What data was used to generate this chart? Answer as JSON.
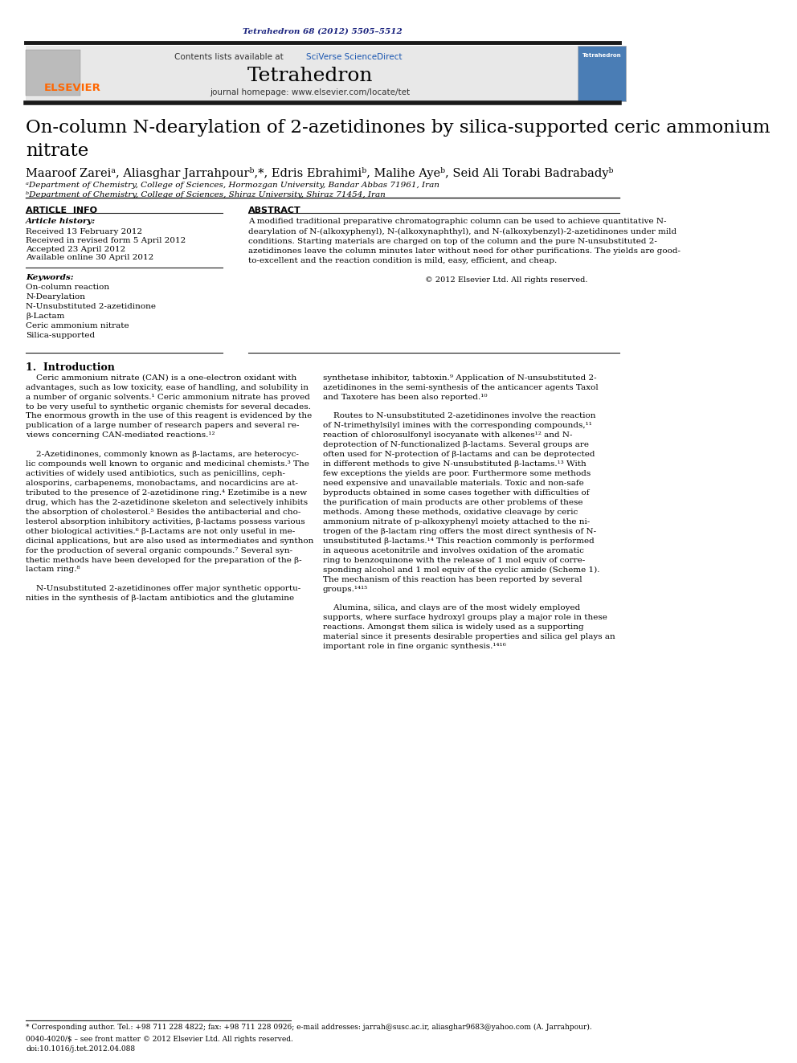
{
  "page_width": 9.92,
  "page_height": 13.23,
  "bg_color": "#ffffff",
  "journal_ref": "Tetrahedron 68 (2012) 5505–5512",
  "journal_ref_color": "#1a237e",
  "header_bg": "#e8e8e8",
  "header_title": "Tetrahedron",
  "header_contents": "Contents lists available at ",
  "header_sciverse": "SciVerse ScienceDirect",
  "header_homepage": "journal homepage: www.elsevier.com/locate/tet",
  "elsevier_color": "#ff6600",
  "sciverse_color": "#1a56b0",
  "article_title": "On-column N-dearylation of 2-azetidinones by silica-supported ceric ammonium\nnitrate",
  "affil_a": "ᵃDepartment of Chemistry, College of Sciences, Hormozgan University, Bandar Abbas 71961, Iran",
  "affil_b": "ᵇDepartment of Chemistry, College of Sciences, Shiraz University, Shiraz 71454, Iran",
  "article_info_title": "ARTICLE  INFO",
  "abstract_title": "ABSTRACT",
  "article_history_label": "Article history:",
  "received": "Received 13 February 2012",
  "revised": "Received in revised form 5 April 2012",
  "accepted": "Accepted 23 April 2012",
  "available": "Available online 30 April 2012",
  "keywords_label": "Keywords:",
  "keywords": [
    "On-column reaction",
    "N-Dearylation",
    "N-Unsubstituted 2-azetidinone",
    "β-Lactam",
    "Ceric ammonium nitrate",
    "Silica-supported"
  ],
  "abstract_copyright": "© 2012 Elsevier Ltd. All rights reserved.",
  "section1_title": "1.  Introduction",
  "footnote_star": "* Corresponding author. Tel.: +98 711 228 4822; fax: +98 711 228 0926; e-mail addresses: jarrah@susc.ac.ir, aliasghar9683@yahoo.com (A. Jarrahpour).",
  "footnote_issn": "0040-4020/$ – see front matter © 2012 Elsevier Ltd. All rights reserved.",
  "footnote_doi": "doi:10.1016/j.tet.2012.04.088",
  "thick_bar_color": "#1a1a1a",
  "thin_line_color": "#1a1a1a"
}
